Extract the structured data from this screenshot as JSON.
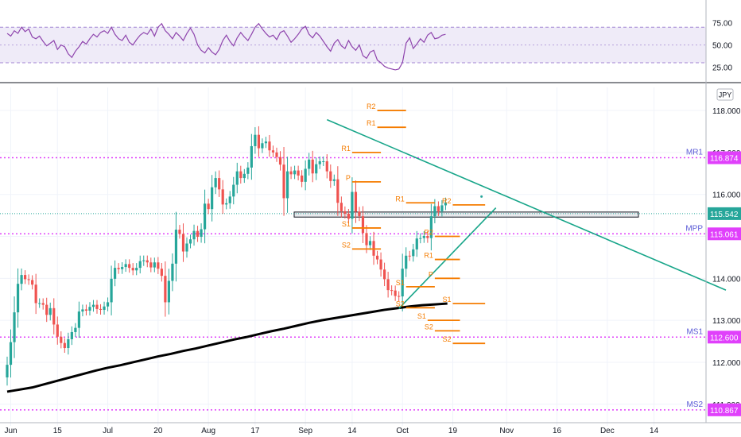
{
  "chart_data": [
    {
      "type": "line",
      "panel": "rsi",
      "yticks": [
        "75.00",
        "50.00",
        "25.00"
      ],
      "ytick_values": [
        75,
        50,
        25
      ],
      "ylim": [
        13,
        97
      ],
      "band": [
        30,
        70
      ],
      "band_color": "#7e57c2",
      "line_color": "#8e44ad",
      "values": [
        63,
        60,
        66,
        63,
        70,
        65,
        68,
        59,
        57,
        60,
        54,
        49,
        52,
        55,
        45,
        50,
        48,
        40,
        36,
        43,
        48,
        54,
        51,
        57,
        62,
        59,
        64,
        66,
        63,
        70,
        62,
        57,
        55,
        61,
        53,
        50,
        56,
        61,
        64,
        62,
        68,
        60,
        70,
        74,
        66,
        62,
        57,
        64,
        60,
        55,
        63,
        69,
        62,
        50,
        44,
        41,
        47,
        42,
        39,
        45,
        55,
        61,
        54,
        49,
        58,
        64,
        59,
        55,
        62,
        70,
        74,
        68,
        63,
        59,
        61,
        56,
        64,
        66,
        60,
        53,
        57,
        62,
        68,
        71,
        62,
        58,
        64,
        60,
        54,
        48,
        43,
        52,
        56,
        49,
        46,
        55,
        48,
        44,
        50,
        38,
        35,
        42,
        44,
        33,
        30,
        26,
        24,
        23,
        22,
        23,
        30,
        52,
        58,
        46,
        51,
        57,
        53,
        61,
        64,
        57,
        58,
        61,
        62
      ]
    },
    {
      "type": "candlestick",
      "panel": "price",
      "currency": "JPY",
      "ylim": [
        110.75,
        118.55
      ],
      "yticks": [
        "118.000",
        "117.000",
        "116.000",
        "115.000",
        "114.000",
        "113.000",
        "112.000",
        "111.000"
      ],
      "ytick_values": [
        118,
        117,
        116,
        115,
        114,
        113,
        112,
        111
      ],
      "xticks": [
        "Jun",
        "15",
        "Jul",
        "20",
        "Aug",
        "17",
        "Sep",
        "14",
        "Oct",
        "19",
        "Nov",
        "16",
        "Dec",
        "14"
      ],
      "xtick_bar_index": [
        1,
        14,
        28,
        42,
        56,
        69,
        83,
        96,
        110,
        124,
        139,
        153,
        167,
        180
      ],
      "up_color": "#26a69a",
      "down_color": "#ef5350",
      "closes": [
        111.94,
        112.48,
        113.19,
        113.87,
        114.08,
        113.98,
        113.96,
        113.85,
        113.41,
        113.41,
        113.37,
        113.13,
        113.29,
        112.9,
        112.61,
        112.46,
        112.34,
        112.55,
        112.72,
        112.82,
        113.21,
        113.26,
        113.23,
        113.32,
        113.37,
        113.27,
        113.25,
        113.33,
        113.43,
        113.99,
        114.25,
        114.22,
        114.27,
        114.34,
        114.25,
        114.19,
        114.25,
        114.41,
        114.43,
        114.38,
        114.26,
        114.38,
        114.23,
        114.06,
        113.43,
        113.94,
        114.35,
        115.16,
        115.06,
        114.64,
        114.83,
        114.93,
        115.13,
        114.99,
        115.17,
        115.78,
        115.65,
        116.17,
        116.39,
        116.12,
        115.76,
        115.79,
        115.95,
        116.23,
        116.55,
        116.39,
        116.49,
        116.64,
        117.15,
        117.42,
        117.1,
        117.22,
        117.26,
        117.05,
        117.0,
        116.89,
        116.71,
        115.91,
        116.55,
        116.48,
        116.57,
        116.45,
        116.3,
        116.61,
        116.83,
        116.5,
        116.72,
        116.79,
        116.79,
        116.55,
        116.32,
        116.36,
        115.8,
        115.6,
        115.54,
        115.42,
        116.06,
        115.59,
        115.48,
        115.08,
        114.79,
        114.89,
        114.54,
        114.45,
        114.21,
        113.98,
        113.72,
        113.71,
        113.58,
        113.57,
        114.23,
        114.54,
        114.53,
        114.69,
        114.95,
        114.96,
        115.01,
        114.96,
        115.48,
        115.72,
        115.6,
        115.74,
        115.81
      ],
      "series": [
        {
          "name": "",
          "values": [
            111.3,
            111.35,
            111.4,
            111.48,
            111.56,
            111.64,
            111.72,
            111.8,
            111.87,
            111.93,
            112.0,
            112.07,
            112.14,
            112.2,
            112.27,
            112.33,
            112.4,
            112.47,
            112.54,
            112.6,
            112.67,
            112.74,
            112.8,
            112.87,
            112.94,
            113.0,
            113.05,
            113.1,
            113.15,
            113.2,
            113.25,
            113.29,
            113.33,
            113.36,
            113.38,
            113.4
          ]
        }
      ],
      "hlines": [
        {
          "label": "MR1",
          "value": 116.874,
          "text": "116.874"
        },
        {
          "label": "MPP",
          "value": 115.061,
          "text": "115.061"
        },
        {
          "label": "MS1",
          "value": 112.6,
          "text": "112.600"
        },
        {
          "label": "MS2",
          "value": 110.867,
          "text": "110.867"
        }
      ],
      "last_price": {
        "value": 115.542,
        "text": "115.542"
      },
      "zone": [
        115.46,
        115.58
      ],
      "trendlines": [
        {
          "from": [
            89,
            117.78
          ],
          "to": [
            200,
            113.72
          ]
        },
        {
          "from": [
            109,
            113.28
          ],
          "to": [
            136,
            115.68
          ]
        }
      ],
      "pivot_levels": [
        {
          "label": "R2",
          "value": 118.0,
          "from": 103,
          "to": 111
        },
        {
          "label": "R1",
          "value": 117.6,
          "from": 103,
          "to": 111
        },
        {
          "label": "R1",
          "value": 117.0,
          "from": 96,
          "to": 104
        },
        {
          "label": "P",
          "value": 116.3,
          "from": 96,
          "to": 104
        },
        {
          "label": "R1",
          "value": 115.8,
          "from": 111,
          "to": 119
        },
        {
          "label": "S1",
          "value": 115.2,
          "from": 96,
          "to": 104
        },
        {
          "label": "S2",
          "value": 114.7,
          "from": 96,
          "to": 104
        },
        {
          "label": "R2",
          "value": 115.75,
          "from": 124,
          "to": 133
        },
        {
          "label": "R2",
          "value": 115.0,
          "from": 119,
          "to": 126
        },
        {
          "label": "R1",
          "value": 114.45,
          "from": 119,
          "to": 126
        },
        {
          "label": "P",
          "value": 114.0,
          "from": 119,
          "to": 126
        },
        {
          "label": "S1",
          "value": 113.8,
          "from": 111,
          "to": 119
        },
        {
          "label": "S2",
          "value": 113.3,
          "from": 111,
          "to": 119
        },
        {
          "label": "S1",
          "value": 113.0,
          "from": 117,
          "to": 126
        },
        {
          "label": "S2",
          "value": 112.75,
          "from": 119,
          "to": 126
        },
        {
          "label": "S1",
          "value": 113.4,
          "from": 124,
          "to": 133
        },
        {
          "label": "S2",
          "value": 112.45,
          "from": 124,
          "to": 133
        }
      ],
      "last_point_marker": {
        "value": 115.95,
        "bar_index": 132
      }
    }
  ]
}
